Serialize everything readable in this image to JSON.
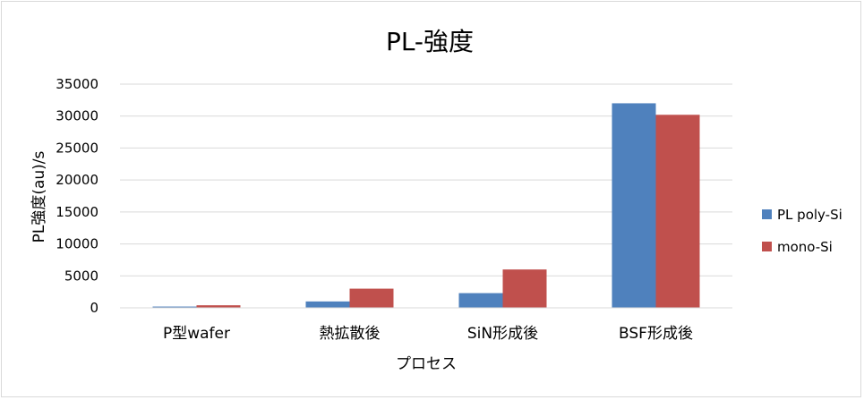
{
  "chart_data": {
    "type": "bar",
    "title": "PL-強度",
    "xlabel": "プロセス",
    "ylabel": "PL強度(au)/s",
    "categories": [
      "P型wafer",
      "熱拡散後",
      "SiN形成後",
      "BSF形成後"
    ],
    "series": [
      {
        "name": "PL poly-Si",
        "color": "#4f81bd",
        "values": [
          200,
          1000,
          2300,
          32000
        ]
      },
      {
        "name": "mono-Si",
        "color": "#c0504d",
        "values": [
          400,
          3000,
          6000,
          30200
        ]
      }
    ],
    "ylim": [
      0,
      35000
    ],
    "yticks": [
      "0",
      "5000",
      "10000",
      "15000",
      "20000",
      "25000",
      "30000",
      "35000"
    ],
    "grid": true,
    "legend_position": "right"
  }
}
